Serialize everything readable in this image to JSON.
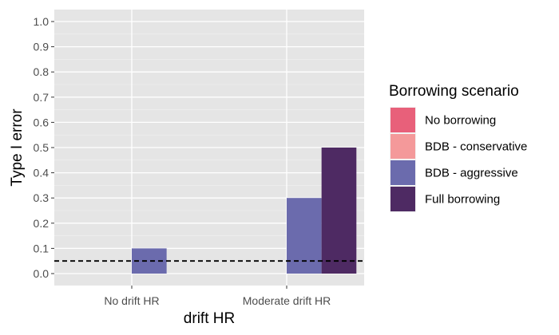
{
  "chart_data": {
    "type": "bar",
    "xlabel": "drift HR",
    "ylabel": "Type I error",
    "ylim": [
      0,
      1.0
    ],
    "yticks": [
      "0.0",
      "0.1",
      "0.2",
      "0.3",
      "0.4",
      "0.5",
      "0.6",
      "0.7",
      "0.8",
      "0.9",
      "1.0"
    ],
    "categories": [
      "No drift HR",
      "Moderate drift HR"
    ],
    "series": [
      {
        "name": "No borrowing",
        "color": "#E8607A",
        "values": [
          0.0,
          0.0
        ]
      },
      {
        "name": "BDB - conservative",
        "color": "#F4999A",
        "values": [
          0.0,
          0.0
        ]
      },
      {
        "name": "BDB - aggressive",
        "color": "#6B6BAD",
        "values": [
          0.1,
          0.3
        ]
      },
      {
        "name": "Full borrowing",
        "color": "#4E2A63",
        "values": [
          0.0,
          0.5
        ]
      }
    ],
    "reference_line": {
      "y": 0.05,
      "style": "dashed"
    },
    "legend": {
      "title": "Borrowing scenario",
      "position": "right"
    },
    "grid": true,
    "panel_background": "#E5E5E5"
  }
}
